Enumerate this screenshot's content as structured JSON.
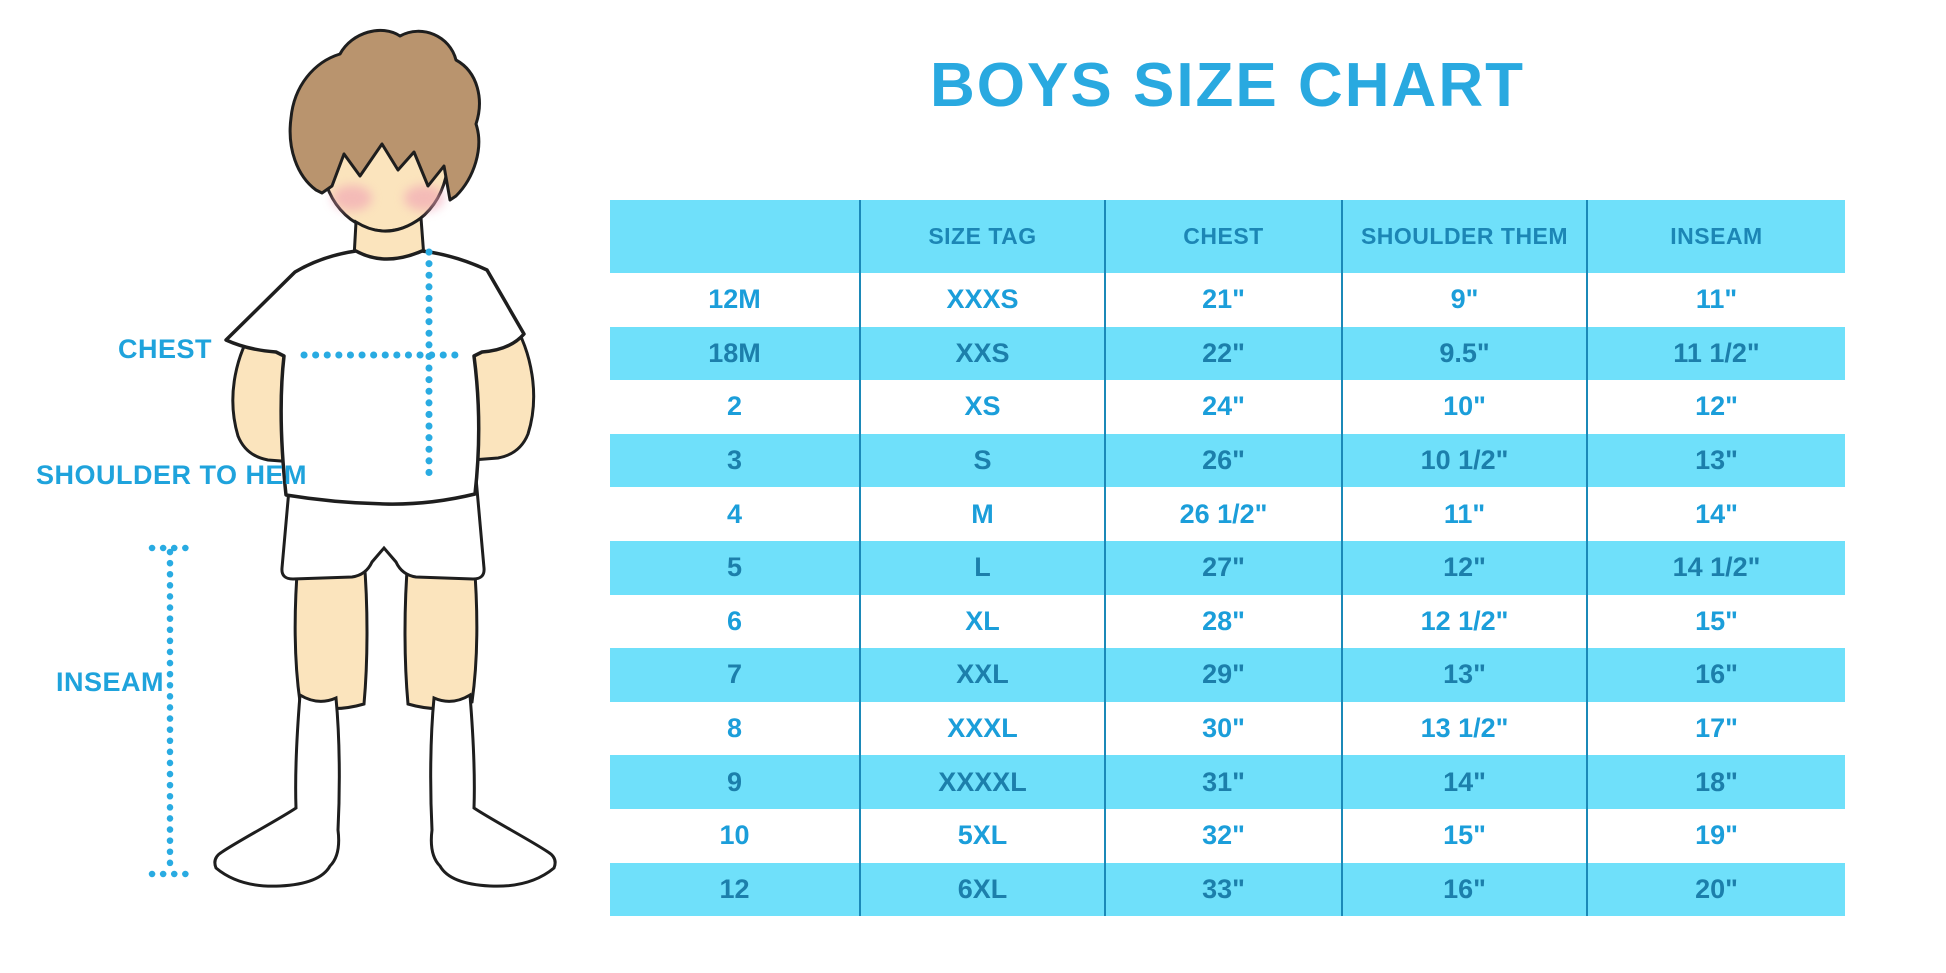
{
  "title": "BOYS SIZE CHART",
  "figure": {
    "labels": {
      "chest": "CHEST",
      "shoulder_to_hem": "SHOULDER TO HEM",
      "inseam": "INSEAM"
    }
  },
  "chart_data": {
    "type": "table",
    "title": "BOYS SIZE CHART",
    "columns": [
      "",
      "SIZE TAG",
      "CHEST",
      "SHOULDER THEM",
      "INSEAM"
    ],
    "rows": [
      [
        "12M",
        "XXXS",
        "21\"",
        "9\"",
        "11\""
      ],
      [
        "18M",
        "XXS",
        "22\"",
        "9.5\"",
        "11 1/2\""
      ],
      [
        "2",
        "XS",
        "24\"",
        "10\"",
        "12\""
      ],
      [
        "3",
        "S",
        "26\"",
        "10 1/2\"",
        "13\""
      ],
      [
        "4",
        "M",
        "26 1/2\"",
        "11\"",
        "14\""
      ],
      [
        "5",
        "L",
        "27\"",
        "12\"",
        "14 1/2\""
      ],
      [
        "6",
        "XL",
        "28\"",
        "12 1/2\"",
        "15\""
      ],
      [
        "7",
        "XXL",
        "29\"",
        "13\"",
        "16\""
      ],
      [
        "8",
        "XXXL",
        "30\"",
        "13 1/2\"",
        "17\""
      ],
      [
        "9",
        "XXXXL",
        "31\"",
        "14\"",
        "18\""
      ],
      [
        "10",
        "5XL",
        "32\"",
        "15\"",
        "19\""
      ],
      [
        "12",
        "6XL",
        "33\"",
        "16\"",
        "20\""
      ]
    ],
    "layout": {
      "header_fill": "#6FE0FA",
      "stripe_fill": "#6FE0FA",
      "alt_fill": "#ffffff"
    }
  },
  "colors": {
    "accent_blue": "#29A9E0",
    "stripe_cyan": "#6FE0FA",
    "text_on_white": "#1B9EDA",
    "text_on_stripe": "#1C7FAB",
    "header_text": "#1C86B5",
    "divider": "#1B89B8",
    "dotted_line": "#29ABE2",
    "skin": "#FBE4BD",
    "hair": "#B9946E",
    "cheek": "#F0A0B4",
    "outline": "#1E1E1E"
  }
}
